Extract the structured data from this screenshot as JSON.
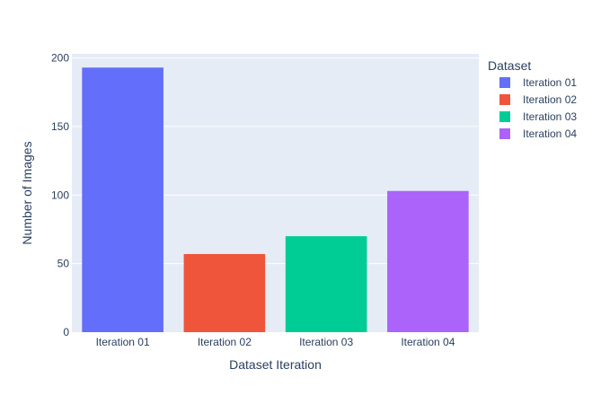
{
  "chart_data": {
    "type": "bar",
    "title": "",
    "xlabel": "Dataset Iteration",
    "ylabel": "Number of Images",
    "categories": [
      "Iteration 01",
      "Iteration 02",
      "Iteration 03",
      "Iteration 04"
    ],
    "values": [
      193,
      57,
      70,
      103
    ],
    "colors": [
      "#636efa",
      "#ef553b",
      "#00cc96",
      "#ab63fa"
    ],
    "ylim": [
      0,
      203
    ],
    "yticks": [
      0,
      50,
      100,
      150,
      200
    ],
    "grid": true,
    "plot_background": "#e5ecf6",
    "legend": {
      "title": "Dataset",
      "placement": "right",
      "entries": [
        "Iteration 01",
        "Iteration 02",
        "Iteration 03",
        "Iteration 04"
      ]
    }
  }
}
